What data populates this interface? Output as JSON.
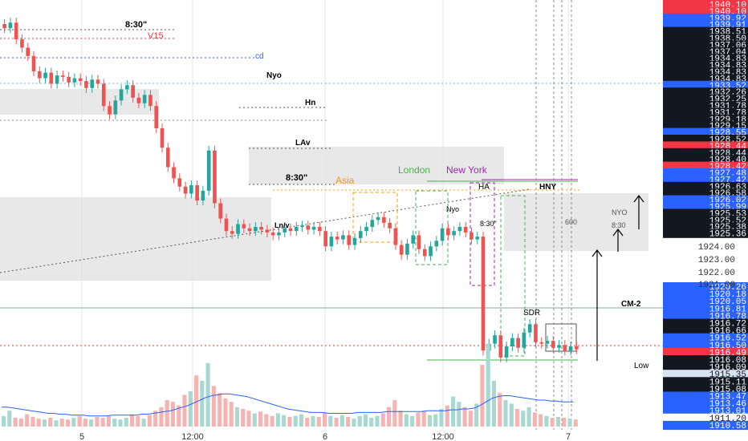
{
  "colors": {
    "up": "#26a69a",
    "down": "#ef5350",
    "blue_tag": "#2962ff",
    "red_tag": "#f23645",
    "black_tag": "#131722",
    "zone": "#e0e0e0",
    "volume_up": "#a7d8d2",
    "volume_down": "#f5b3b1",
    "ma_line": "#2962ff",
    "asia": "#ff9800",
    "london": "#4caf50",
    "newyork": "#9c27b0"
  },
  "chart_data": {
    "type": "candlestick",
    "symbol_price_scale": "XAUUSD",
    "x_tick_labels": [
      "5",
      "12:00",
      "6",
      "12:00",
      "7"
    ],
    "y_tick_labels": [
      "1925.00",
      "1924.00",
      "1923.00",
      "1922.00",
      "1921.00"
    ],
    "ylim": [
      1910.3,
      1941.0
    ],
    "price_tags": [
      {
        "v": "1940.10",
        "c": "red_tag"
      },
      {
        "v": "1940.10",
        "c": "red_tag"
      },
      {
        "v": "1939.92",
        "c": "blue_tag"
      },
      {
        "v": "1939.91",
        "c": "blue_tag"
      },
      {
        "v": "1938.51",
        "c": "black_tag"
      },
      {
        "v": "1938.50",
        "c": "black_tag"
      },
      {
        "v": "1937.06",
        "c": "black_tag"
      },
      {
        "v": "1937.04",
        "c": "black_tag"
      },
      {
        "v": "1934.83",
        "c": "black_tag"
      },
      {
        "v": "1934.83",
        "c": "black_tag"
      },
      {
        "v": "1934.83",
        "c": "black_tag"
      },
      {
        "v": "1934.83",
        "c": "black_tag"
      },
      {
        "v": "1933.52",
        "c": "blue_tag"
      },
      {
        "v": "1932.26",
        "c": "black_tag"
      },
      {
        "v": "1932.25",
        "c": "black_tag"
      },
      {
        "v": "1931.78",
        "c": "black_tag"
      },
      {
        "v": "1931.78",
        "c": "black_tag"
      },
      {
        "v": "1929.18",
        "c": "black_tag"
      },
      {
        "v": "1929.15",
        "c": "black_tag"
      },
      {
        "v": "1928.55",
        "c": "blue_tag"
      },
      {
        "v": "1928.52",
        "c": "black_tag"
      },
      {
        "v": "1928.44",
        "c": "red_tag"
      },
      {
        "v": "1928.44",
        "c": "black_tag"
      },
      {
        "v": "1928.40",
        "c": "black_tag"
      },
      {
        "v": "1928.42",
        "c": "red_tag"
      },
      {
        "v": "1927.48",
        "c": "blue_tag"
      },
      {
        "v": "1927.42",
        "c": "blue_tag"
      },
      {
        "v": "1926.63",
        "c": "black_tag"
      },
      {
        "v": "1926.58",
        "c": "black_tag"
      },
      {
        "v": "1926.02",
        "c": "blue_tag"
      },
      {
        "v": "1925.99",
        "c": "blue_tag"
      },
      {
        "v": "1925.53",
        "c": "black_tag"
      },
      {
        "v": "1925.52",
        "c": "black_tag"
      },
      {
        "v": "1925.38",
        "c": "black_tag"
      },
      {
        "v": "1925.36",
        "c": "black_tag"
      },
      {
        "v": "1920.26",
        "c": "blue_tag"
      },
      {
        "v": "1920.18",
        "c": "blue_tag"
      },
      {
        "v": "1920.05",
        "c": "blue_tag"
      },
      {
        "v": "1916.81",
        "c": "blue_tag"
      },
      {
        "v": "1916.78",
        "c": "blue_tag"
      },
      {
        "v": "1916.72",
        "c": "black_tag"
      },
      {
        "v": "1916.66",
        "c": "black_tag"
      },
      {
        "v": "1916.52",
        "c": "blue_tag"
      },
      {
        "v": "1916.50",
        "c": "blue_tag"
      },
      {
        "v": "1916.49",
        "c": "red_tag"
      },
      {
        "v": "1916.08",
        "c": "black_tag"
      },
      {
        "v": "1916.09",
        "c": "black_tag"
      },
      {
        "v": "1915.35",
        "c": "light_tag"
      },
      {
        "v": "1915.11",
        "c": "black_tag"
      },
      {
        "v": "1915.08",
        "c": "black_tag"
      },
      {
        "v": "1913.47",
        "c": "blue_tag"
      },
      {
        "v": "1913.46",
        "c": "blue_tag"
      },
      {
        "v": "1913.01",
        "c": "blue_tag"
      },
      {
        "v": "1911.20",
        "c": "plain"
      },
      {
        "v": "1910.58",
        "c": "blue_tag"
      }
    ],
    "annotations": [
      "8:30\"",
      "V15",
      "cd",
      "Nyo",
      "Hn",
      "LAv",
      "8:30\"",
      "Asia",
      "London",
      "New York",
      "HA",
      "HNY",
      "Nyo",
      "8:30\"",
      "600",
      "NYO",
      "8:30",
      "Ln/v",
      "CM-2",
      "Low",
      "SDR"
    ],
    "close_series": [
      1939.2,
      1939.6,
      1938.4,
      1937.8,
      1937.2,
      1936.1,
      1935.6,
      1936.0,
      1935.2,
      1935.8,
      1935.7,
      1935.3,
      1935.6,
      1935.4,
      1934.9,
      1935.5,
      1935.2,
      1933.6,
      1933.0,
      1934.0,
      1934.8,
      1935.1,
      1934.2,
      1933.8,
      1934.4,
      1933.6,
      1932.0,
      1930.6,
      1929.2,
      1928.4,
      1927.8,
      1927.3,
      1927.9,
      1926.8,
      1927.5,
      1930.4,
      1926.6,
      1925.5,
      1924.6,
      1924.4,
      1925.1,
      1924.8,
      1924.6,
      1924.9,
      1924.7,
      1924.5,
      1924.3,
      1924.5,
      1924.8,
      1924.6,
      1924.9,
      1925.0,
      1924.7,
      1924.9,
      1924.6,
      1923.5,
      1924.2,
      1924.0,
      1924.3,
      1923.6,
      1924.1,
      1924.6,
      1924.9,
      1925.4,
      1925.6,
      1925.2,
      1924.8,
      1923.6,
      1922.9,
      1923.7,
      1924.3,
      1923.3,
      1922.8,
      1923.5,
      1923.9,
      1924.8,
      1924.3,
      1924.6,
      1924.9,
      1924.5,
      1924.0,
      1924.2,
      1916.0,
      1916.5,
      1917.1,
      1915.5,
      1916.3,
      1916.9,
      1916.2,
      1917.3,
      1917.9,
      1916.6,
      1916.5,
      1916.7,
      1916.2,
      1916.4,
      1916.0,
      1916.3,
      1916.1
    ],
    "volume_series": [
      12,
      18,
      10,
      9,
      14,
      11,
      9,
      8,
      10,
      7,
      9,
      8,
      10,
      12,
      9,
      8,
      11,
      10,
      12,
      9,
      8,
      10,
      14,
      12,
      9,
      13,
      18,
      22,
      30,
      28,
      24,
      36,
      40,
      58,
      52,
      72,
      46,
      38,
      32,
      28,
      22,
      20,
      18,
      15,
      17,
      14,
      12,
      15,
      13,
      11,
      12,
      14,
      10,
      12,
      11,
      16,
      12,
      10,
      13,
      11,
      9,
      12,
      14,
      10,
      12,
      15,
      22,
      30,
      18,
      14,
      12,
      16,
      18,
      13,
      14,
      20,
      24,
      34,
      28,
      22,
      18,
      26,
      70,
      94,
      52,
      38,
      30,
      26,
      20,
      18,
      22,
      16,
      14,
      12,
      10,
      11,
      10,
      9,
      8
    ],
    "ma_series": [
      22,
      22,
      21,
      20,
      19,
      18,
      17,
      16,
      15,
      15,
      14,
      14,
      13,
      13,
      13,
      12,
      12,
      12,
      12,
      13,
      13,
      13,
      13,
      13,
      14,
      14,
      15,
      16,
      17,
      18,
      20,
      22,
      24,
      27,
      30,
      33,
      35,
      36,
      37,
      37,
      36,
      35,
      34,
      32,
      30,
      28,
      26,
      24,
      22,
      20,
      19,
      18,
      17,
      16,
      16,
      16,
      15,
      15,
      15,
      15,
      15,
      16,
      16,
      16,
      16,
      16,
      17,
      17,
      17,
      17,
      17,
      17,
      17,
      18,
      18,
      18,
      18,
      19,
      19,
      20,
      20,
      21,
      24,
      28,
      32,
      34,
      35,
      35,
      34,
      33,
      32,
      31,
      30,
      30,
      29,
      29,
      28,
      28,
      28
    ]
  }
}
